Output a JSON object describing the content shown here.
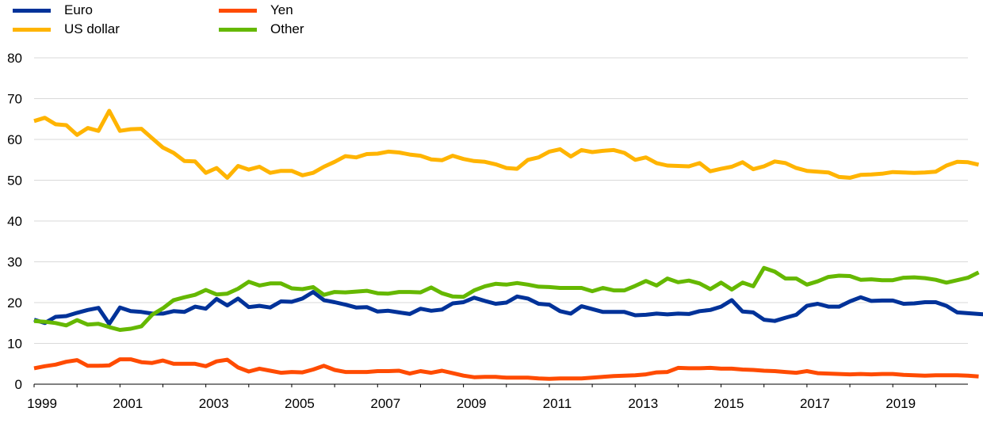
{
  "chart_data": {
    "type": "line",
    "title": "",
    "xlabel": "",
    "ylabel": "",
    "ylim": [
      0,
      80
    ],
    "y_ticks": [
      0,
      10,
      20,
      30,
      40,
      50,
      60,
      70,
      80
    ],
    "xlim": [
      1999,
      2020.75
    ],
    "x_tick_labels": [
      "1999",
      "2001",
      "2003",
      "2005",
      "2007",
      "2009",
      "2011",
      "2013",
      "2015",
      "2017",
      "2019"
    ],
    "grid": "horizontal",
    "legend_position": "top-left",
    "x_start": 1999,
    "x_step": 0.25,
    "series": [
      {
        "name": "Euro",
        "color": "#003299",
        "values": [
          15.8,
          15.0,
          16.5,
          16.7,
          17.5,
          18.2,
          18.7,
          14.8,
          18.8,
          17.9,
          17.7,
          17.3,
          17.3,
          17.9,
          17.7,
          19.0,
          18.5,
          20.9,
          19.3,
          21.0,
          18.9,
          19.2,
          18.8,
          20.3,
          20.2,
          21.0,
          22.6,
          20.6,
          20.1,
          19.5,
          18.8,
          18.9,
          17.8,
          18.0,
          17.6,
          17.2,
          18.5,
          18.0,
          18.3,
          19.8,
          20.1,
          21.2,
          20.4,
          19.7,
          20.0,
          21.5,
          21.0,
          19.7,
          19.5,
          17.9,
          17.3,
          19.1,
          18.4,
          17.7,
          17.7,
          17.7,
          16.9,
          17.0,
          17.3,
          17.1,
          17.3,
          17.2,
          17.9,
          18.2,
          19.0,
          20.6,
          17.8,
          17.6,
          15.8,
          15.5,
          16.3,
          17.0,
          19.2,
          19.7,
          19.0,
          19.0,
          20.3,
          21.3,
          20.4,
          20.5,
          20.5,
          19.7,
          19.8,
          20.1,
          20.1,
          19.2,
          17.6,
          17.4,
          17.2,
          17.0
        ]
      },
      {
        "name": "US dollar",
        "color": "#ffb400",
        "values": [
          64.5,
          65.3,
          63.7,
          63.5,
          61.1,
          62.8,
          62.1,
          67.0,
          62.1,
          62.5,
          62.6,
          60.3,
          58.0,
          56.7,
          54.7,
          54.6,
          51.8,
          53.0,
          50.6,
          53.5,
          52.6,
          53.3,
          51.8,
          52.3,
          52.3,
          51.2,
          51.8,
          53.3,
          54.5,
          55.9,
          55.6,
          56.4,
          56.5,
          57.0,
          56.8,
          56.3,
          56.0,
          55.1,
          54.9,
          56.0,
          55.2,
          54.7,
          54.5,
          53.9,
          53.0,
          52.8,
          55.0,
          55.6,
          57.0,
          57.6,
          55.8,
          57.4,
          56.9,
          57.2,
          57.4,
          56.7,
          55.0,
          55.6,
          54.2,
          53.6,
          53.5,
          53.4,
          54.2,
          52.2,
          52.8,
          53.3,
          54.4,
          52.7,
          53.4,
          54.6,
          54.2,
          53.0,
          52.3,
          52.1,
          51.9,
          50.8,
          50.6,
          51.3,
          51.4,
          51.6,
          52.0,
          51.9,
          51.8,
          51.9,
          52.1,
          53.6,
          54.5,
          54.4,
          53.8
        ]
      },
      {
        "name": "Yen",
        "color": "#ff4b00",
        "values": [
          3.9,
          4.4,
          4.8,
          5.5,
          5.9,
          4.5,
          4.5,
          4.6,
          6.1,
          6.1,
          5.4,
          5.2,
          5.8,
          5.0,
          5.0,
          5.0,
          4.4,
          5.6,
          6.0,
          4.1,
          3.1,
          3.8,
          3.3,
          2.8,
          3.0,
          2.9,
          3.6,
          4.5,
          3.5,
          3.0,
          3.0,
          3.0,
          3.2,
          3.2,
          3.3,
          2.6,
          3.2,
          2.8,
          3.3,
          2.7,
          2.1,
          1.7,
          1.8,
          1.8,
          1.6,
          1.6,
          1.6,
          1.4,
          1.3,
          1.4,
          1.4,
          1.4,
          1.6,
          1.8,
          2.0,
          2.1,
          2.2,
          2.4,
          2.9,
          3.0,
          4.0,
          3.9,
          3.9,
          4.0,
          3.8,
          3.8,
          3.6,
          3.5,
          3.3,
          3.2,
          3.0,
          2.8,
          3.2,
          2.7,
          2.6,
          2.5,
          2.4,
          2.5,
          2.4,
          2.5,
          2.5,
          2.3,
          2.2,
          2.1,
          2.2,
          2.2,
          2.2,
          2.1,
          1.9
        ]
      },
      {
        "name": "Other",
        "color": "#65b800",
        "values": [
          15.5,
          15.3,
          15.0,
          14.4,
          15.7,
          14.6,
          14.8,
          14.0,
          13.3,
          13.6,
          14.2,
          17.0,
          18.6,
          20.6,
          21.3,
          21.9,
          23.1,
          22.0,
          22.2,
          23.4,
          25.1,
          24.2,
          24.7,
          24.7,
          23.5,
          23.3,
          23.8,
          21.9,
          22.6,
          22.5,
          22.7,
          22.9,
          22.3,
          22.2,
          22.6,
          22.6,
          22.5,
          23.7,
          22.3,
          21.5,
          21.4,
          23.0,
          24.0,
          24.6,
          24.4,
          24.8,
          24.4,
          23.9,
          23.8,
          23.6,
          23.6,
          23.6,
          22.8,
          23.6,
          23.0,
          23.0,
          24.1,
          25.3,
          24.2,
          25.9,
          25.0,
          25.4,
          24.7,
          23.3,
          24.9,
          23.2,
          24.9,
          24.0,
          28.5,
          27.6,
          25.9,
          25.9,
          24.4,
          25.2,
          26.3,
          26.6,
          26.5,
          25.6,
          25.7,
          25.5,
          25.5,
          26.1,
          26.2,
          26.0,
          25.6,
          24.9,
          25.5,
          26.1,
          27.4
        ]
      }
    ]
  },
  "legend": [
    {
      "label": "Euro",
      "color": "#003299"
    },
    {
      "label": "US dollar",
      "color": "#ffb400"
    },
    {
      "label": "Yen",
      "color": "#ff4b00"
    },
    {
      "label": "Other",
      "color": "#65b800"
    }
  ]
}
